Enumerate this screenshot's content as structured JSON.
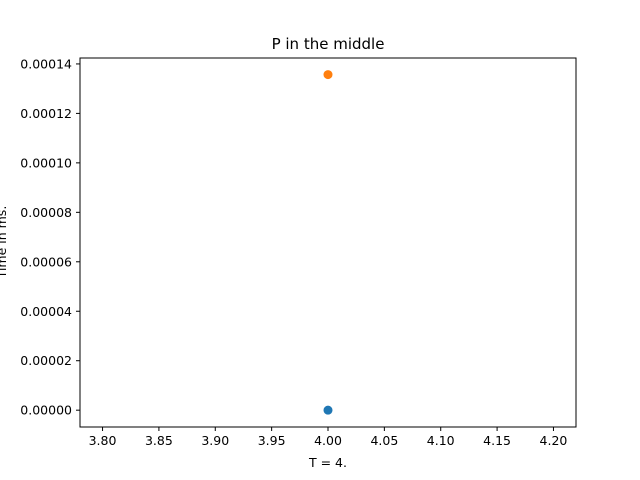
{
  "chart_data": {
    "type": "scatter",
    "title": "P in the middle",
    "xlabel": "T = 4.",
    "ylabel": "Time in ms.",
    "xlim": [
      3.78,
      4.22
    ],
    "ylim": [
      -6.8e-06,
      0.0001424
    ],
    "x_ticks": [
      3.8,
      3.85,
      3.9,
      3.95,
      4.0,
      4.05,
      4.1,
      4.15,
      4.2
    ],
    "x_tick_labels": [
      "3.80",
      "3.85",
      "3.90",
      "3.95",
      "4.00",
      "4.05",
      "4.10",
      "4.15",
      "4.20"
    ],
    "y_ticks": [
      0,
      2e-05,
      4e-05,
      6e-05,
      8e-05,
      0.0001,
      0.00012,
      0.00014
    ],
    "y_tick_labels": [
      "0.00000",
      "0.00002",
      "0.00004",
      "0.00006",
      "0.00008",
      "0.00010",
      "0.00012",
      "0.00014"
    ],
    "grid": false,
    "series": [
      {
        "color": "#1f77b4",
        "points": [
          {
            "x": 4.0,
            "y": 0.0
          }
        ]
      },
      {
        "color": "#ff7f0e",
        "points": [
          {
            "x": 4.0,
            "y": 0.0001357
          }
        ]
      }
    ]
  }
}
